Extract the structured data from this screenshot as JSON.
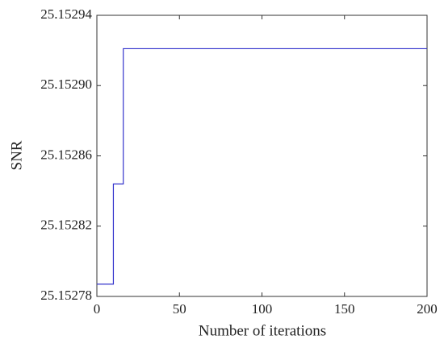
{
  "chart_data": {
    "type": "line",
    "x_label": "Number of iterations",
    "y_label": "SNR",
    "series": [
      {
        "color": "#3333cc",
        "x": [
          0,
          10,
          10,
          16,
          16,
          200
        ],
        "values": [
          25.152787,
          25.152787,
          25.152844,
          25.152844,
          25.152921,
          25.152921
        ]
      }
    ],
    "xlim": [
      0,
      200
    ],
    "xticks": [
      0,
      50,
      100,
      150,
      200
    ],
    "ylim": [
      25.15278,
      25.15294
    ],
    "yticks": [
      25.15278,
      25.15282,
      25.15286,
      {
        "value": 25.1529,
        "label": "25.15290"
      },
      25.15294
    ],
    "grid": false
  }
}
